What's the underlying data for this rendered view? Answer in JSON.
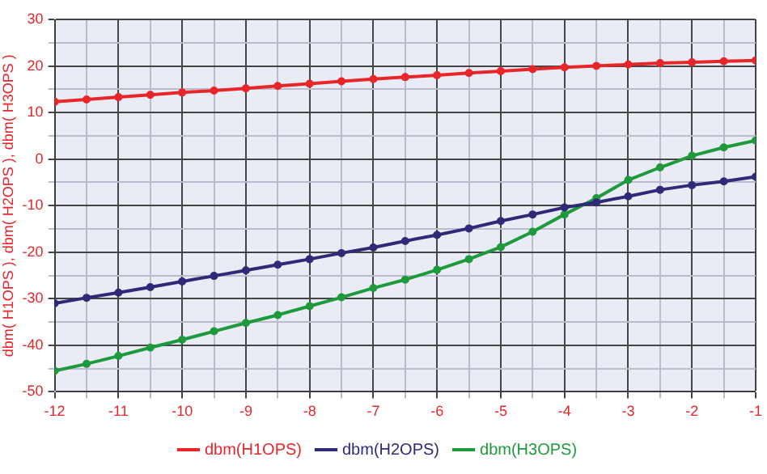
{
  "chart_data": {
    "type": "line",
    "ylabel": "dbm( H1OPS ), dbm( H2OPS ), dbm( H3OPS )",
    "x": [
      -12,
      -11.5,
      -11,
      -10.5,
      -10,
      -9.5,
      -9,
      -8.5,
      -8,
      -7.5,
      -7,
      -6.5,
      -6,
      -5.5,
      -5,
      -4.5,
      -4,
      -3.5,
      -3,
      -2.5,
      -2,
      -1.5,
      -1
    ],
    "series": [
      {
        "name": "dbm(H1OPS)",
        "color": "#e8262a",
        "values": [
          12.3,
          12.8,
          13.3,
          13.8,
          14.3,
          14.7,
          15.2,
          15.7,
          16.2,
          16.7,
          17.2,
          17.6,
          18.0,
          18.5,
          18.9,
          19.3,
          19.7,
          20.0,
          20.3,
          20.6,
          20.8,
          21.0,
          21.2
        ]
      },
      {
        "name": "dbm(H2OPS)",
        "color": "#2e2a78",
        "values": [
          -31,
          -29.8,
          -28.7,
          -27.5,
          -26.3,
          -25.1,
          -23.9,
          -22.7,
          -21.5,
          -20.2,
          -19,
          -17.6,
          -16.3,
          -14.9,
          -13.3,
          -11.9,
          -10.4,
          -9.3,
          -8.0,
          -6.6,
          -5.6,
          -4.8,
          -3.8
        ]
      },
      {
        "name": "dbm(H3OPS)",
        "color": "#1e9a3c",
        "values": [
          -45.5,
          -44,
          -42.3,
          -40.5,
          -38.8,
          -37,
          -35.2,
          -33.5,
          -31.6,
          -29.7,
          -27.7,
          -25.9,
          -23.8,
          -21.5,
          -18.9,
          -15.6,
          -11.9,
          -8.4,
          -4.5,
          -1.8,
          0.7,
          2.5,
          4.0
        ]
      }
    ],
    "xlim": [
      -12,
      -1
    ],
    "xticks": [
      -12,
      {
        "value": -11.5,
        "label": null
      },
      -11,
      {
        "value": -10.5,
        "label": null
      },
      -10,
      {
        "value": -9.5,
        "label": null
      },
      -9,
      {
        "value": -8.5,
        "label": null
      },
      -8,
      {
        "value": -7.5,
        "label": null
      },
      -7,
      {
        "value": -6.5,
        "label": null
      },
      -6,
      {
        "value": -5.5,
        "label": null
      },
      -5,
      {
        "value": -4.5,
        "label": null
      },
      -4,
      {
        "value": -3.5,
        "label": null
      },
      -3,
      {
        "value": -2.5,
        "label": null
      },
      -2,
      {
        "value": -1.5,
        "label": null
      },
      -1
    ],
    "ylim": [
      -50,
      30
    ],
    "yticks": [
      -50,
      {
        "value": -45,
        "label": null
      },
      -40,
      {
        "value": -35,
        "label": null
      },
      -30,
      {
        "value": -25,
        "label": null
      },
      -20,
      {
        "value": -15,
        "label": null
      },
      -10,
      {
        "value": -5,
        "label": null
      },
      0,
      {
        "value": 5,
        "label": null
      },
      10,
      {
        "value": 15,
        "label": null
      },
      20,
      {
        "value": 25,
        "label": null
      },
      30
    ],
    "grid": true,
    "legend": "bottom",
    "marker": "circle",
    "line_style": "solid"
  }
}
